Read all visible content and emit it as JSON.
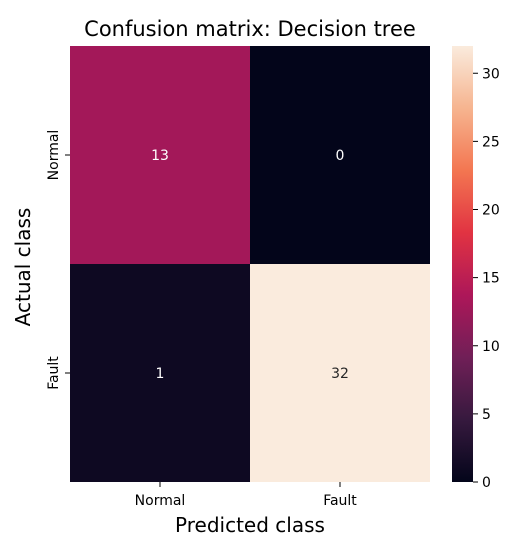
{
  "chart_data": {
    "type": "heatmap",
    "title": "Confusion matrix: Decision tree",
    "xlabel": "Predicted class",
    "ylabel": "Actual class",
    "x_categories": [
      "Normal",
      "Fault"
    ],
    "y_categories": [
      "Normal",
      "Fault"
    ],
    "values": [
      [
        13,
        0
      ],
      [
        1,
        32
      ]
    ],
    "colorbar": {
      "min": 0,
      "max": 32,
      "ticks": [
        0,
        5,
        10,
        15,
        20,
        25,
        30
      ]
    },
    "colormap": [
      "#03051a",
      "#36193e",
      "#701f57",
      "#ad1759",
      "#e13342",
      "#f37651",
      "#f6b48f",
      "#faebdd"
    ],
    "annotation_colors": {
      "on_dark": "#ffffff",
      "on_light": "#262626"
    },
    "grid": false
  }
}
